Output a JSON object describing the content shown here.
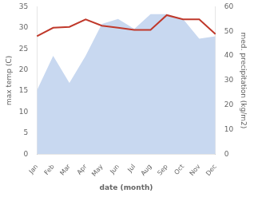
{
  "chart_data": {
    "type": "line",
    "xlabel": "date (month)",
    "ylabel": "max temp (C)",
    "y2label": "med. precipitation (kg/m2)",
    "categories": [
      "Jan",
      "Feb",
      "Mar",
      "Apr",
      "May",
      "Jun",
      "Jul",
      "Aug",
      "Sep",
      "Oct",
      "Nov",
      "Dec"
    ],
    "series": [
      {
        "type": "area",
        "color": "#c8d8f0",
        "axis": "y2",
        "values": [
          26,
          40,
          29,
          40,
          53,
          55,
          51,
          57,
          57,
          55,
          47,
          48
        ]
      },
      {
        "type": "line",
        "color": "#c0392b",
        "values": [
          28.0,
          30.0,
          30.2,
          32.0,
          30.5,
          30.0,
          29.5,
          29.5,
          33.0,
          32.0,
          32.0,
          28.5
        ]
      }
    ],
    "ylim": [
      0,
      35
    ],
    "yticks": [
      0,
      5,
      10,
      15,
      20,
      25,
      30,
      35
    ],
    "y2lim": [
      0,
      60
    ],
    "y2ticks": [
      0,
      10,
      20,
      30,
      40,
      50,
      60
    ],
    "grid": false
  }
}
